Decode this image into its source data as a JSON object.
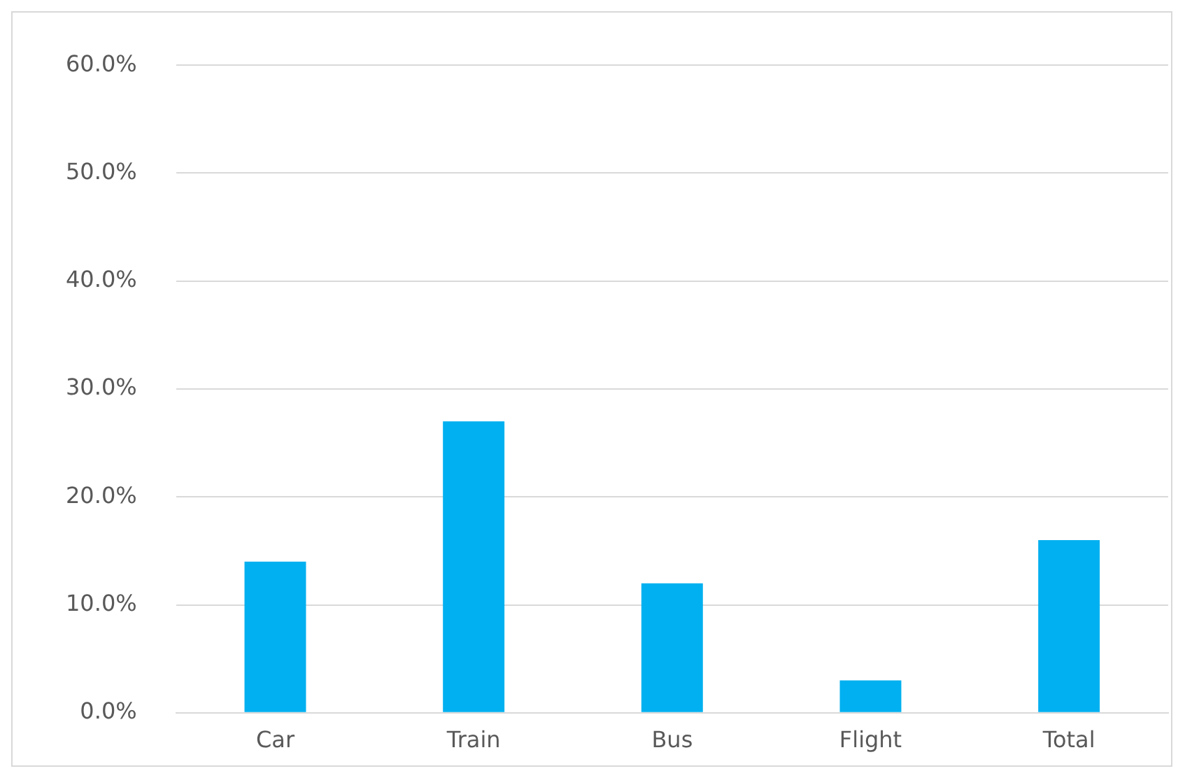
{
  "chart_data": {
    "type": "bar",
    "categories": [
      "Car",
      "Train",
      "Bus",
      "Flight",
      "Total"
    ],
    "values": [
      14,
      27,
      12,
      3,
      16
    ],
    "color": "#00b0f0",
    "ylim": [
      0,
      60
    ],
    "yticks": [
      {
        "value": 0,
        "label": "0.0%"
      },
      {
        "value": 10,
        "label": "10.0%"
      },
      {
        "value": 20,
        "label": "20.0%"
      },
      {
        "value": 30,
        "label": "30.0%"
      },
      {
        "value": 40,
        "label": "40.0%"
      },
      {
        "value": 50,
        "label": "50.0%"
      },
      {
        "value": 60,
        "label": "60.0%"
      }
    ],
    "grid": "y",
    "legend": false
  }
}
